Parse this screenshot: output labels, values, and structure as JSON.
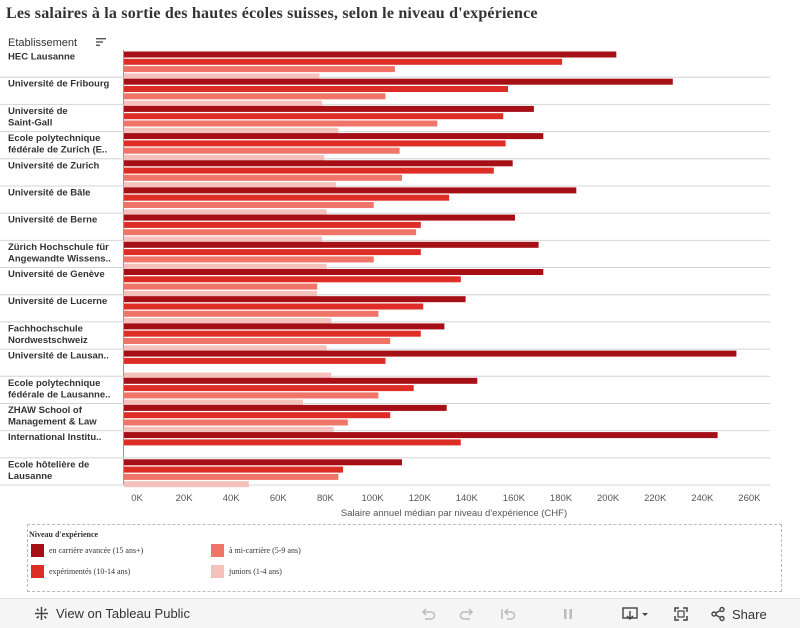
{
  "title": "Les salaires à la sortie des hautes écoles suisses, selon le niveau d'expérience",
  "row_header": "Etablissement",
  "colors": {
    "advanced": "#a50f15",
    "experienced": "#de2d26",
    "mid": "#f07468",
    "junior": "#f4c1bd"
  },
  "chart_data": {
    "type": "bar",
    "orientation": "horizontal",
    "title": "Les salaires à la sortie des hautes écoles suisses, selon le niveau d'expérience",
    "xlabel": "Salaire annuel médian par niveau d'expérience (CHF)",
    "ylabel": "Etablissement",
    "xlim": [
      0,
      270000
    ],
    "xticks": [
      0,
      20000,
      40000,
      60000,
      80000,
      100000,
      120000,
      140000,
      160000,
      180000,
      200000,
      220000,
      240000,
      260000
    ],
    "xtick_labels": [
      "0K",
      "20K",
      "40K",
      "60K",
      "80K",
      "100K",
      "120K",
      "140K",
      "160K",
      "180K",
      "200K",
      "220K",
      "240K",
      "260K"
    ],
    "categories": [
      [
        "HEC Lausanne"
      ],
      [
        "Université de Fribourg"
      ],
      [
        "Université de",
        "Saint-Gall"
      ],
      [
        "Ecole polytechnique",
        "fédérale de Zurich (E.."
      ],
      [
        "Université de Zurich"
      ],
      [
        "Université de Bâle"
      ],
      [
        "Université de Berne"
      ],
      [
        "Zürich Hochschule für",
        "Angewandte Wissens.."
      ],
      [
        "Université de Genève"
      ],
      [
        "Université de Lucerne"
      ],
      [
        "Fachhochschule",
        "Nordwestschweiz"
      ],
      [
        "Université de Lausan.."
      ],
      [
        "Ecole polytechnique",
        "fédérale de Lausanne.."
      ],
      [
        "ZHAW School of",
        "Management & Law"
      ],
      [
        "International Institu.."
      ],
      [
        "Ecole hôtelière de",
        "Lausanne"
      ]
    ],
    "series": [
      {
        "name": "en carrière avancée (15 ans+)",
        "color": "#a50f15",
        "values": [
          209000,
          233000,
          174000,
          178000,
          165000,
          192000,
          166000,
          176000,
          178000,
          145000,
          136000,
          260000,
          150000,
          137000,
          252000,
          118000
        ]
      },
      {
        "name": "expérimentés (10-14 ans)",
        "color": "#de2d26",
        "values": [
          186000,
          163000,
          161000,
          162000,
          157000,
          138000,
          126000,
          126000,
          143000,
          127000,
          126000,
          111000,
          123000,
          113000,
          143000,
          93000
        ]
      },
      {
        "name": "à mi-carrière (5-9 ans)",
        "color": "#f07468",
        "values": [
          115000,
          111000,
          133000,
          117000,
          118000,
          106000,
          124000,
          106000,
          82000,
          108000,
          113000,
          null,
          108000,
          95000,
          null,
          91000
        ]
      },
      {
        "name": "juniors (1-4 ans)",
        "color": "#f4c1bd",
        "values": [
          83000,
          84000,
          91000,
          85000,
          90000,
          86000,
          84000,
          86000,
          82000,
          88000,
          86000,
          88000,
          76000,
          89000,
          null,
          53000
        ]
      }
    ]
  },
  "legend": {
    "title": "Niveau d'expérience",
    "items": [
      {
        "label": "en carrière avancée (15 ans+)",
        "color": "#a50f15"
      },
      {
        "label": "à mi-carrière (5-9 ans)",
        "color": "#f07468"
      },
      {
        "label": "expérimentés (10-14 ans)",
        "color": "#de2d26"
      },
      {
        "label": "juniors (1-4 ans)",
        "color": "#f4c1bd"
      }
    ]
  },
  "footer": {
    "view_label": "View on Tableau Public",
    "share_label": "Share"
  }
}
